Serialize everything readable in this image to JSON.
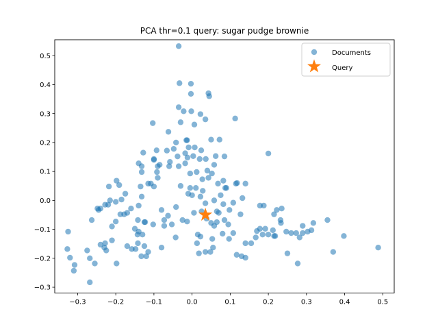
{
  "chart_data": {
    "type": "scatter",
    "title": "PCA    thr=0.1    query: sugar pudge brownie",
    "xlabel": "",
    "ylabel": "",
    "xlim": [
      -0.36,
      0.53
    ],
    "ylim": [
      -0.32,
      0.555
    ],
    "x_ticks": [
      -0.3,
      -0.2,
      -0.1,
      0.0,
      0.1,
      0.2,
      0.3,
      0.4,
      0.5
    ],
    "x_tick_labels": [
      "−0.3",
      "−0.2",
      "−0.1",
      "0.0",
      "0.1",
      "0.2",
      "0.3",
      "0.4",
      "0.5"
    ],
    "y_ticks": [
      -0.3,
      -0.2,
      -0.1,
      0.0,
      0.1,
      0.2,
      0.3,
      0.4,
      0.5
    ],
    "y_tick_labels": [
      "−0.3",
      "−0.2",
      "−0.1",
      "0.0",
      "0.1",
      "0.2",
      "0.3",
      "0.4",
      "0.5"
    ],
    "grid": false,
    "legend_position": "top-right",
    "series": [
      {
        "name": "Documents",
        "marker": "circle",
        "color": "#1f77b4",
        "points": [
          [
            -0.035,
            0.533
          ],
          [
            -0.033,
            0.405
          ],
          [
            -0.003,
            0.403
          ],
          [
            0.043,
            0.37
          ],
          [
            0.045,
            0.36
          ],
          [
            -0.003,
            0.368
          ],
          [
            -0.035,
            0.322
          ],
          [
            -0.022,
            0.308
          ],
          [
            -0.002,
            0.308
          ],
          [
            0.022,
            0.298
          ],
          [
            0.035,
            0.28
          ],
          [
            0.113,
            0.283
          ],
          [
            -0.03,
            0.27
          ],
          [
            0.006,
            0.262
          ],
          [
            -0.103,
            0.267
          ],
          [
            -0.062,
            0.237
          ],
          [
            -0.042,
            0.2
          ],
          [
            -0.015,
            0.208
          ],
          [
            -0.013,
            0.208
          ],
          [
            0.05,
            0.21
          ],
          [
            0.072,
            0.21
          ],
          [
            0.2,
            0.162
          ],
          [
            -0.093,
            0.173
          ],
          [
            -0.066,
            0.172
          ],
          [
            -0.048,
            0.178
          ],
          [
            -0.018,
            0.163
          ],
          [
            -0.009,
            0.183
          ],
          [
            0.007,
            0.183
          ],
          [
            0.024,
            0.173
          ],
          [
            -0.128,
            0.165
          ],
          [
            -0.038,
            0.152
          ],
          [
            -0.012,
            0.148
          ],
          [
            0.003,
            0.153
          ],
          [
            0.02,
            0.143
          ],
          [
            0.036,
            0.143
          ],
          [
            0.062,
            0.153
          ],
          [
            0.085,
            0.152
          ],
          [
            -0.1,
            0.14
          ],
          [
            -0.1,
            0.143
          ],
          [
            -0.085,
            0.123
          ],
          [
            -0.14,
            0.128
          ],
          [
            -0.132,
            0.118
          ],
          [
            -0.058,
            0.133
          ],
          [
            -0.018,
            0.128
          ],
          [
            0.058,
            0.123
          ],
          [
            -0.191,
            0.053
          ],
          [
            -0.218,
            0.048
          ],
          [
            -0.198,
            0.068
          ],
          [
            -0.09,
            0.118
          ],
          [
            -0.035,
            0.118
          ],
          [
            -0.06,
            0.118
          ],
          [
            -0.132,
            0.098
          ],
          [
            -0.092,
            0.098
          ],
          [
            -0.005,
            0.093
          ],
          [
            0.012,
            0.098
          ],
          [
            0.04,
            0.103
          ],
          [
            0.052,
            0.093
          ],
          [
            0.027,
            0.073
          ],
          [
            0.043,
            0.078
          ],
          [
            -0.09,
            0.078
          ],
          [
            -0.115,
            0.058
          ],
          [
            -0.108,
            0.058
          ],
          [
            -0.135,
            0.048
          ],
          [
            0.082,
            0.068
          ],
          [
            0.087,
            0.043
          ],
          [
            0.09,
            0.043
          ],
          [
            -0.1,
            0.048
          ],
          [
            -0.03,
            0.05
          ],
          [
            0.115,
            0.058
          ],
          [
            0.118,
            0.06
          ],
          [
            0.14,
            0.058
          ],
          [
            0.068,
            0.058
          ],
          [
            -0.005,
            0.043
          ],
          [
            0.01,
            0.043
          ],
          [
            0.028,
            0.033
          ],
          [
            -0.175,
            0.023
          ],
          [
            -0.132,
            0.013
          ],
          [
            -0.185,
            0.003
          ],
          [
            -0.215,
            0.0
          ],
          [
            -0.2,
            -0.005
          ],
          [
            -0.22,
            -0.015
          ],
          [
            -0.228,
            -0.015
          ],
          [
            -0.248,
            -0.028
          ],
          [
            -0.24,
            -0.028
          ],
          [
            -0.245,
            -0.033
          ],
          [
            -0.14,
            -0.018
          ],
          [
            -0.16,
            -0.028
          ],
          [
            -0.17,
            -0.043
          ],
          [
            -0.188,
            -0.048
          ],
          [
            -0.178,
            -0.048
          ],
          [
            -0.2,
            -0.073
          ],
          [
            -0.21,
            -0.09
          ],
          [
            -0.142,
            -0.068
          ],
          [
            -0.125,
            -0.075
          ],
          [
            -0.102,
            -0.083
          ],
          [
            -0.073,
            -0.088
          ],
          [
            -0.073,
            -0.068
          ],
          [
            -0.053,
            -0.083
          ],
          [
            -0.08,
            -0.033
          ],
          [
            -0.063,
            -0.053
          ],
          [
            -0.042,
            -0.023
          ],
          [
            -0.025,
            -0.068
          ],
          [
            -0.01,
            0.023
          ],
          [
            0.0,
            0.018
          ],
          [
            0.022,
            0.013
          ],
          [
            0.035,
            -0.01
          ],
          [
            0.058,
            -0.0
          ],
          [
            0.075,
            0.018
          ],
          [
            0.082,
            -0.013
          ],
          [
            0.108,
            -0.008
          ],
          [
            0.132,
            0.008
          ],
          [
            0.127,
            -0.048
          ],
          [
            0.098,
            -0.033
          ],
          [
            0.065,
            -0.038
          ],
          [
            0.065,
            -0.075
          ],
          [
            0.05,
            -0.078
          ],
          [
            0.085,
            -0.068
          ],
          [
            0.095,
            -0.083
          ],
          [
            0.108,
            -0.113
          ],
          [
            0.097,
            -0.133
          ],
          [
            0.08,
            -0.115
          ],
          [
            0.022,
            -0.125
          ],
          [
            0.015,
            -0.118
          ],
          [
            0.013,
            -0.148
          ],
          [
            0.053,
            -0.133
          ],
          [
            0.048,
            -0.178
          ],
          [
            0.055,
            -0.163
          ],
          [
            0.035,
            -0.178
          ],
          [
            0.018,
            -0.183
          ],
          [
            0.117,
            -0.188
          ],
          [
            0.13,
            -0.193
          ],
          [
            0.14,
            -0.198
          ],
          [
            0.14,
            -0.148
          ],
          [
            0.155,
            -0.148
          ],
          [
            0.167,
            -0.128
          ],
          [
            0.178,
            -0.098
          ],
          [
            0.17,
            -0.106
          ],
          [
            0.185,
            -0.118
          ],
          [
            0.192,
            -0.098
          ],
          [
            0.212,
            -0.103
          ],
          [
            0.2,
            -0.118
          ],
          [
            0.218,
            -0.123
          ],
          [
            0.232,
            -0.068
          ],
          [
            0.233,
            -0.078
          ],
          [
            0.215,
            -0.048
          ],
          [
            0.222,
            -0.033
          ],
          [
            0.235,
            -0.028
          ],
          [
            0.215,
            -0.123
          ],
          [
            0.247,
            -0.108
          ],
          [
            0.26,
            -0.113
          ],
          [
            0.273,
            -0.113
          ],
          [
            0.29,
            -0.113
          ],
          [
            0.303,
            -0.108
          ],
          [
            0.282,
            -0.128
          ],
          [
            0.29,
            -0.088
          ],
          [
            0.318,
            -0.078
          ],
          [
            0.313,
            -0.103
          ],
          [
            0.25,
            -0.183
          ],
          [
            0.277,
            -0.218
          ],
          [
            0.355,
            -0.068
          ],
          [
            0.37,
            -0.178
          ],
          [
            0.398,
            -0.123
          ],
          [
            0.488,
            -0.163
          ],
          [
            0.178,
            -0.018
          ],
          [
            0.188,
            -0.018
          ],
          [
            -0.325,
            -0.108
          ],
          [
            -0.327,
            -0.168
          ],
          [
            -0.32,
            -0.198
          ],
          [
            -0.308,
            -0.223
          ],
          [
            -0.31,
            -0.243
          ],
          [
            -0.275,
            -0.173
          ],
          [
            -0.268,
            -0.2
          ],
          [
            -0.255,
            -0.218
          ],
          [
            -0.263,
            -0.068
          ],
          [
            -0.268,
            -0.283
          ],
          [
            -0.24,
            -0.153
          ],
          [
            -0.228,
            -0.148
          ],
          [
            -0.23,
            -0.163
          ],
          [
            -0.225,
            -0.173
          ],
          [
            -0.21,
            -0.138
          ],
          [
            -0.198,
            -0.218
          ],
          [
            -0.17,
            -0.158
          ],
          [
            -0.158,
            -0.168
          ],
          [
            -0.148,
            -0.168
          ],
          [
            -0.142,
            -0.148
          ],
          [
            -0.143,
            -0.118
          ],
          [
            -0.12,
            -0.193
          ],
          [
            -0.133,
            -0.193
          ],
          [
            -0.13,
            -0.118
          ],
          [
            -0.14,
            -0.108
          ],
          [
            -0.15,
            -0.098
          ],
          [
            -0.125,
            -0.158
          ],
          [
            -0.115,
            -0.178
          ],
          [
            -0.123,
            -0.075
          ],
          [
            -0.08,
            -0.163
          ],
          [
            -0.043,
            -0.128
          ],
          [
            -0.013,
            -0.073
          ],
          [
            0.005,
            -0.043
          ],
          [
            0.025,
            -0.038
          ],
          [
            0.038,
            -0.063
          ],
          [
            0.07,
            -0.043
          ],
          [
            0.058,
            -0.088
          ]
        ]
      },
      {
        "name": "Query",
        "marker": "star",
        "color": "#ff7f0e",
        "points": [
          [
            0.035,
            -0.05
          ]
        ]
      }
    ]
  }
}
